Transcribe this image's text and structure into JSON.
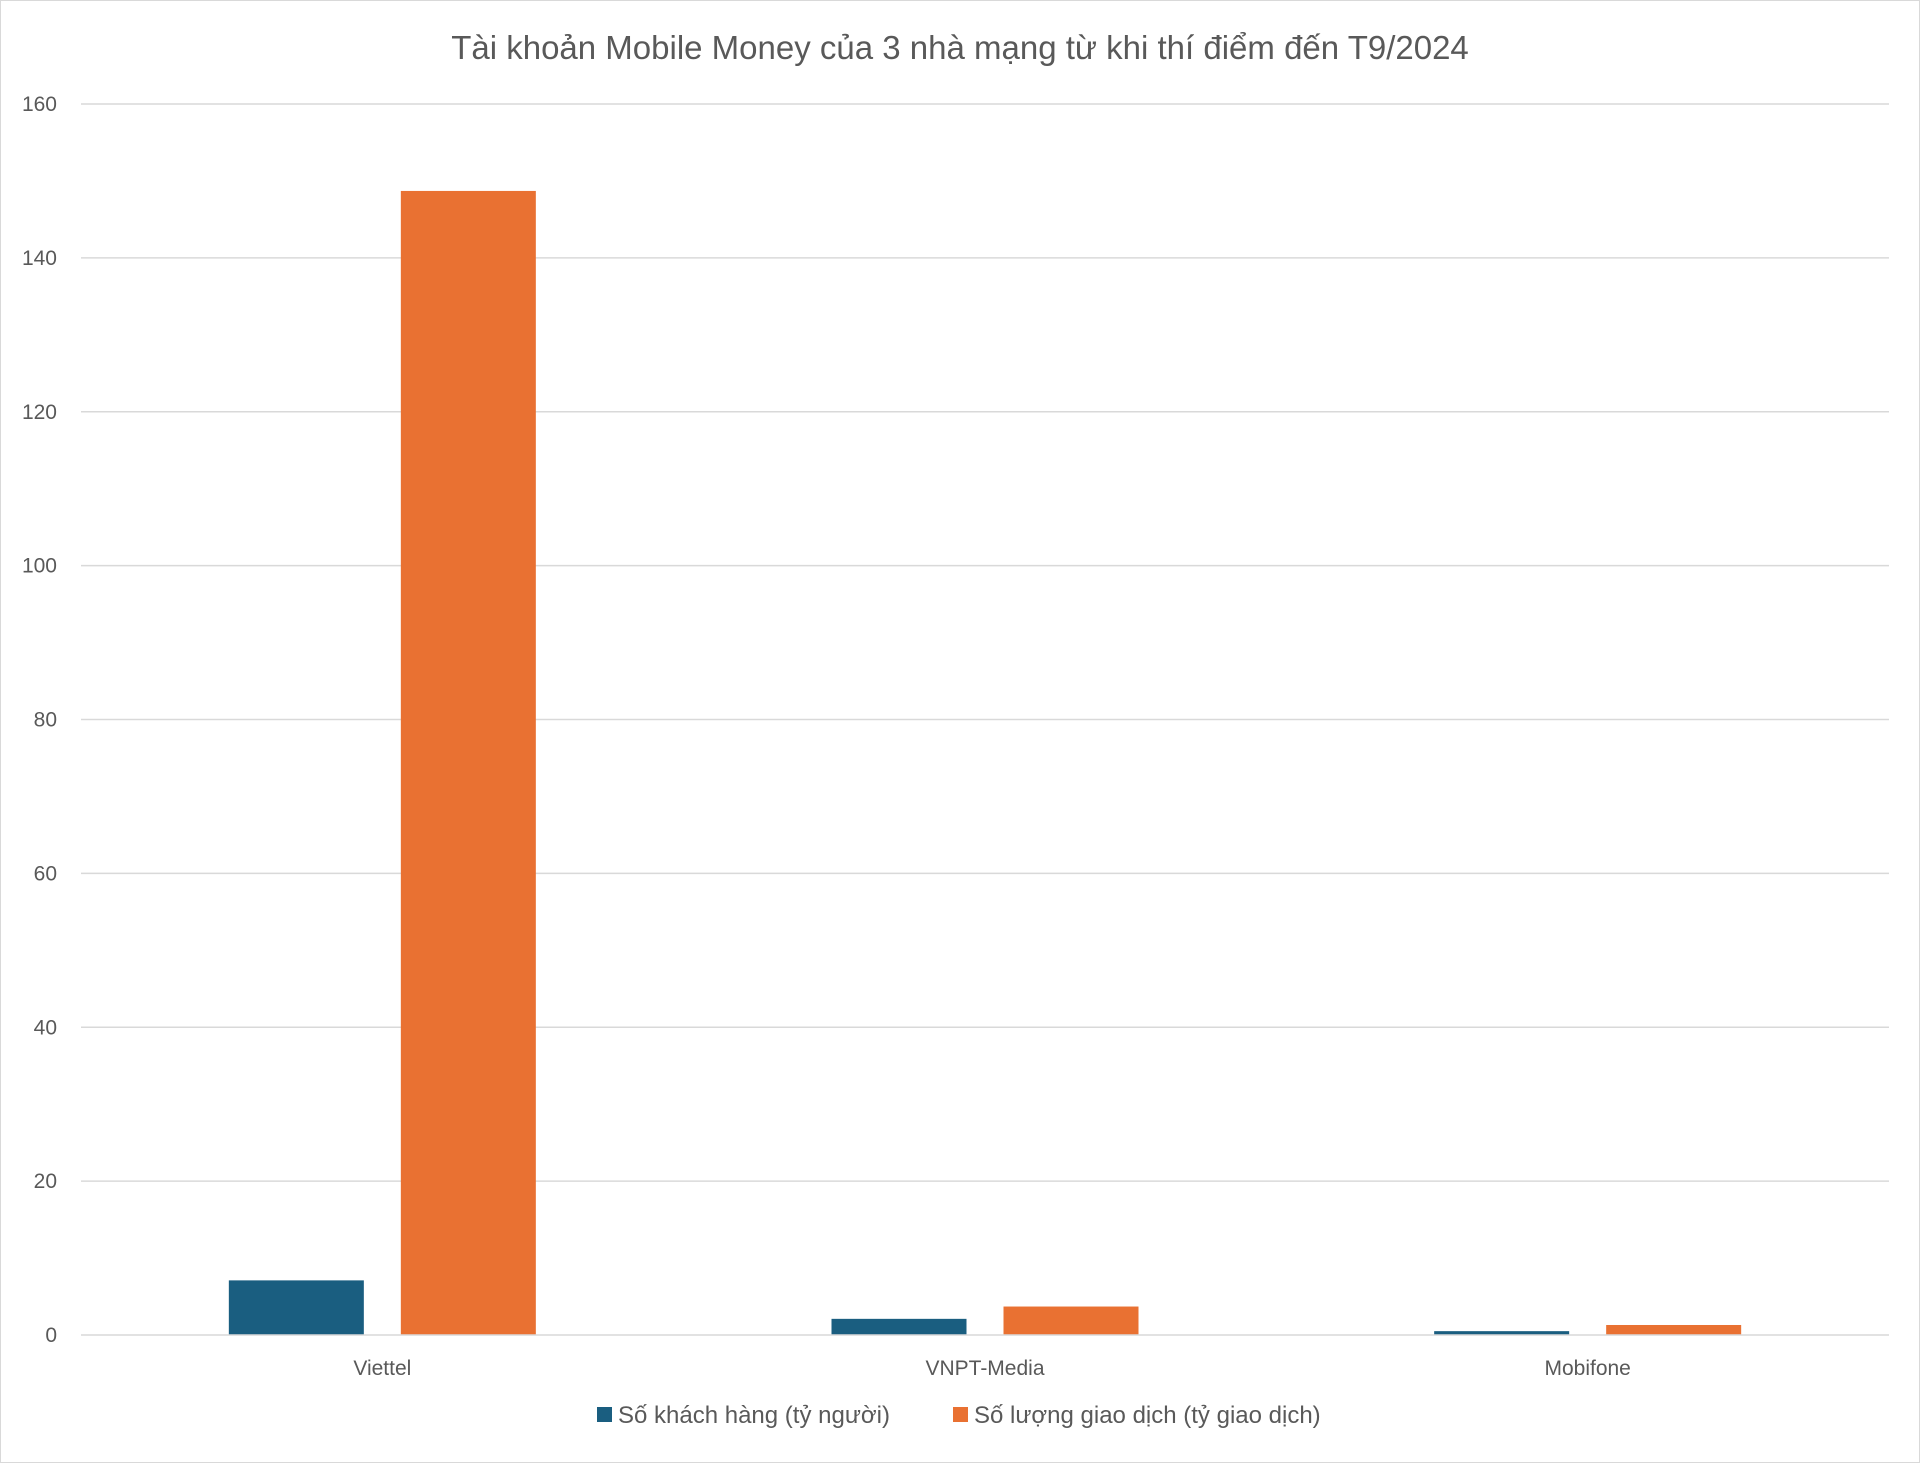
{
  "chart_data": {
    "type": "bar",
    "title": "Tài khoản Mobile Money của 3 nhà mạng từ khi thí điểm đến T9/2024",
    "categories": [
      "Viettel",
      "VNPT-Media",
      "Mobifone"
    ],
    "series": [
      {
        "name": "Số khách hàng (tỷ người)",
        "color": "#1a5e80",
        "values": [
          7.1,
          2.1,
          0.5
        ]
      },
      {
        "name": "Số lượng giao dịch (tỷ giao dịch)",
        "color": "#e97132",
        "values": [
          148.7,
          3.7,
          1.3
        ]
      }
    ],
    "ylim": [
      0,
      160
    ],
    "yticks": [
      "0",
      "20",
      "40",
      "60",
      "80",
      "100",
      "120",
      "140",
      "160"
    ],
    "grid": true,
    "legend_position": "bottom"
  }
}
